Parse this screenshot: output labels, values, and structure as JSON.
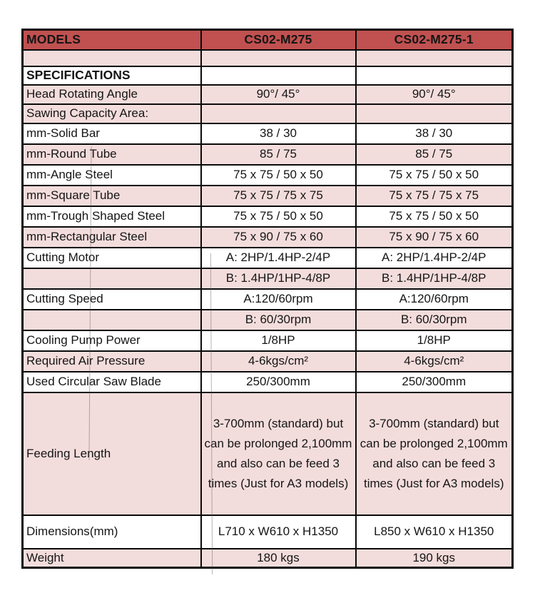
{
  "colors": {
    "header_bg": "#c05150",
    "row_pink": "#f3dddc",
    "border": "#0a0a0a"
  },
  "table": {
    "header": {
      "models_label": "MODELS",
      "model_1": "CS02-M275",
      "model_2": "CS02-M275-1"
    },
    "rows": [
      {
        "id": "empty-row",
        "bg": "pink",
        "label": "",
        "v1": "",
        "v2": ""
      },
      {
        "id": "specifications",
        "bg": "white",
        "bold": true,
        "label": "SPECIFICATIONS",
        "v1": "",
        "v2": ""
      },
      {
        "id": "head-rotating-angle",
        "bg": "pink",
        "label": "Head Rotating Angle",
        "v1": "90°/ 45°",
        "v2": "90°/ 45°"
      },
      {
        "id": "sawing-capacity-area",
        "bg": "pink",
        "label": "Sawing Capacity Area:",
        "v1": "",
        "v2": ""
      },
      {
        "id": "solid-bar",
        "bg": "white",
        "label": "mm-Solid Bar",
        "v1": "38 / 30",
        "v2": "38 / 30"
      },
      {
        "id": "round-tube",
        "bg": "pink",
        "label": "mm-Round Tube",
        "v1": "85 / 75",
        "v2": "85 / 75"
      },
      {
        "id": "angle-steel",
        "bg": "white",
        "label": "mm-Angle Steel",
        "v1": "75 x 75 / 50 x 50",
        "v2": "75 x 75 / 50 x 50"
      },
      {
        "id": "square-tube",
        "bg": "pink",
        "label": "mm-Square Tube",
        "v1": "75 x 75 / 75 x 75",
        "v2": "75 x 75 / 75 x 75"
      },
      {
        "id": "trough-shaped-steel",
        "bg": "white",
        "label": "mm-Trough Shaped Steel",
        "v1": "75 x 75 / 50 x 50",
        "v2": "75 x 75 / 50 x 50"
      },
      {
        "id": "rectangular-steel",
        "bg": "pink",
        "label": "mm-Rectangular Steel",
        "v1": "75 x 90 / 75 x 60",
        "v2": "75 x 90 / 75 x 60"
      },
      {
        "id": "cutting-motor-a",
        "bg": "white",
        "label": "Cutting Motor",
        "v1": "A: 2HP/1.4HP-2/4P",
        "v2": "A: 2HP/1.4HP-2/4P"
      },
      {
        "id": "cutting-motor-b",
        "bg": "pink",
        "label": "",
        "v1": "B: 1.4HP/1HP-4/8P",
        "v2": "B: 1.4HP/1HP-4/8P"
      },
      {
        "id": "cutting-speed-a",
        "bg": "white",
        "label": "Cutting Speed",
        "v1": "A:120/60rpm",
        "v2": "A:120/60rpm"
      },
      {
        "id": "cutting-speed-b",
        "bg": "pink",
        "label": "",
        "v1": "B: 60/30rpm",
        "v2": "B: 60/30rpm"
      },
      {
        "id": "cooling-pump-power",
        "bg": "white",
        "label": "Cooling Pump Power",
        "v1": "1/8HP",
        "v2": "1/8HP"
      },
      {
        "id": "required-air-pressure",
        "bg": "pink",
        "label": "Required Air Pressure",
        "v1": "4-6kgs/cm²",
        "v2": "4-6kgs/cm²"
      },
      {
        "id": "used-circular-saw-blade",
        "bg": "white",
        "label": "Used Circular Saw Blade",
        "v1": "250/300mm",
        "v2": "250/300mm"
      },
      {
        "id": "feeding-length",
        "bg": "pink",
        "label": "Feeding Length",
        "v1": "3-700mm (standard) but can be prolonged 2,100mm and also can be feed 3 times (Just for A3 models)",
        "v2": "3-700mm (standard) but can be prolonged 2,100mm and also can be feed 3 times (Just for A3 models)"
      },
      {
        "id": "dimensions",
        "bg": "white",
        "label": "Dimensions(mm)",
        "v1": "L710 x W610 x H1350",
        "v2": "L850 x W610 x H1350"
      },
      {
        "id": "weight",
        "bg": "pink",
        "label": "Weight",
        "v1": "180 kgs",
        "v2": "190 kgs"
      }
    ]
  }
}
